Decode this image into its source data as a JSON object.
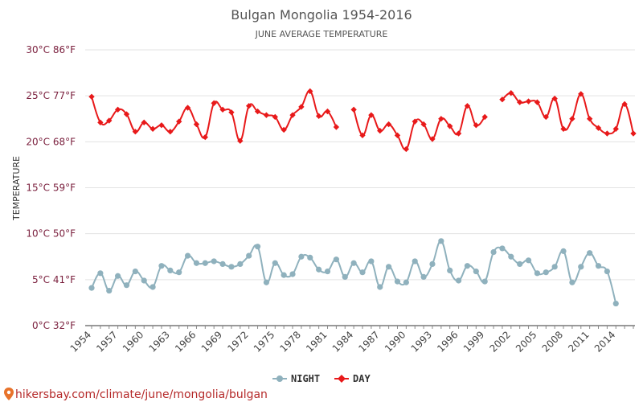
{
  "chart_data": {
    "type": "line",
    "title": "Bulgan Mongolia 1954-2016",
    "subtitle": "JUNE AVERAGE TEMPERATURE",
    "ylabel": "TEMPERATURE",
    "y_ticks": [
      {
        "value": 0,
        "label": "0°C 32°F"
      },
      {
        "value": 5,
        "label": "5°C 41°F"
      },
      {
        "value": 10,
        "label": "10°C 50°F"
      },
      {
        "value": 15,
        "label": "15°C 59°F"
      },
      {
        "value": 20,
        "label": "20°C 68°F"
      },
      {
        "value": 25,
        "label": "25°C 77°F"
      },
      {
        "value": 30,
        "label": "30°C 86°F"
      }
    ],
    "ylim": [
      0,
      30
    ],
    "xlim": [
      1954,
      2016
    ],
    "x_ticks": [
      "1954",
      "1957",
      "1960",
      "1963",
      "1966",
      "1969",
      "1972",
      "1975",
      "1978",
      "1981",
      "1984",
      "1987",
      "1990",
      "1993",
      "1996",
      "1999",
      "2002",
      "2005",
      "2008",
      "2011",
      "2014"
    ],
    "grid": true,
    "legend_position": "bottom",
    "x": [
      1954,
      1955,
      1956,
      1957,
      1958,
      1959,
      1960,
      1961,
      1962,
      1963,
      1964,
      1965,
      1966,
      1967,
      1968,
      1969,
      1970,
      1971,
      1972,
      1973,
      1974,
      1975,
      1976,
      1977,
      1978,
      1979,
      1980,
      1981,
      1982,
      1983,
      1984,
      1985,
      1986,
      1987,
      1988,
      1989,
      1990,
      1991,
      1992,
      1993,
      1994,
      1995,
      1996,
      1997,
      1998,
      1999,
      2000,
      2001,
      2002,
      2003,
      2004,
      2005,
      2006,
      2007,
      2008,
      2009,
      2010,
      2011,
      2012,
      2013,
      2014,
      2015,
      2016
    ],
    "series": [
      {
        "name": "NIGHT",
        "color": "#8fb1bd",
        "values": [
          4.1,
          5.7,
          3.8,
          5.4,
          4.4,
          5.9,
          4.9,
          4.2,
          6.5,
          6.0,
          5.8,
          7.6,
          6.8,
          6.8,
          7.0,
          6.7,
          6.4,
          6.7,
          7.6,
          8.6,
          4.7,
          6.8,
          5.5,
          5.6,
          7.5,
          7.4,
          6.1,
          5.9,
          7.2,
          5.3,
          6.8,
          5.8,
          7.0,
          4.2,
          6.4,
          4.8,
          4.7,
          7.0,
          5.3,
          6.7,
          9.2,
          6.0,
          4.9,
          6.5,
          5.9,
          4.8,
          8.0,
          8.4,
          7.5,
          6.7,
          7.1,
          5.7,
          5.8,
          6.4,
          8.1,
          4.7,
          6.4,
          7.9,
          6.5,
          5.9,
          2.4,
          null,
          null
        ]
      },
      {
        "name": "DAY",
        "color": "#e8191a",
        "values": [
          24.9,
          22.1,
          22.3,
          23.5,
          23.0,
          21.1,
          22.1,
          21.4,
          21.8,
          21.1,
          22.2,
          23.7,
          21.9,
          20.5,
          24.2,
          23.5,
          23.2,
          20.1,
          23.9,
          23.3,
          22.9,
          22.7,
          21.3,
          22.9,
          23.8,
          25.5,
          22.8,
          23.3,
          21.6,
          null,
          23.5,
          20.7,
          22.9,
          21.2,
          21.9,
          20.7,
          19.2,
          22.2,
          21.9,
          20.3,
          22.5,
          21.7,
          20.9,
          23.9,
          21.8,
          22.7,
          null,
          24.6,
          25.3,
          24.3,
          24.4,
          24.3,
          22.7,
          24.7,
          21.4,
          22.5,
          25.2,
          22.5,
          21.5,
          20.9,
          21.4,
          24.1,
          20.9
        ]
      }
    ]
  },
  "footer": {
    "source_text": "hikersbay.com/climate/june/mongolia/bulgan",
    "pin_icon": "location-pin-icon"
  }
}
